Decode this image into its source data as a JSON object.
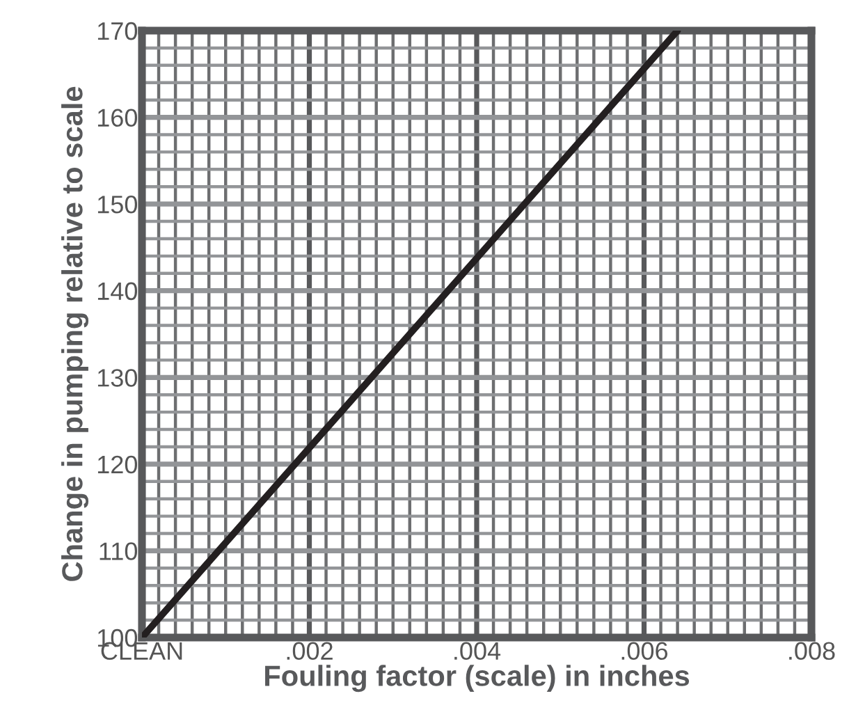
{
  "chart_data": {
    "type": "line",
    "xlabel": "Fouling factor (scale) in inches",
    "ylabel": "Change in pumping relative to scale",
    "series": [
      {
        "color": "#231f20",
        "x": [
          0,
          0.0064
        ],
        "values": [
          100,
          170
        ]
      }
    ],
    "xlim": [
      0,
      0.008
    ],
    "ylim": [
      100,
      170
    ],
    "xticks": [
      {
        "value": 0,
        "label": "CLEAN"
      },
      {
        "value": 0.002,
        "label": ".002"
      },
      {
        "value": 0.004,
        "label": ".004"
      },
      {
        "value": 0.006,
        "label": ".006"
      },
      {
        "value": 0.008,
        "label": ".008"
      }
    ],
    "yticks": [
      100,
      110,
      120,
      130,
      140,
      150,
      160,
      170
    ],
    "grid": true,
    "marker": "none",
    "line_style": "solid"
  }
}
